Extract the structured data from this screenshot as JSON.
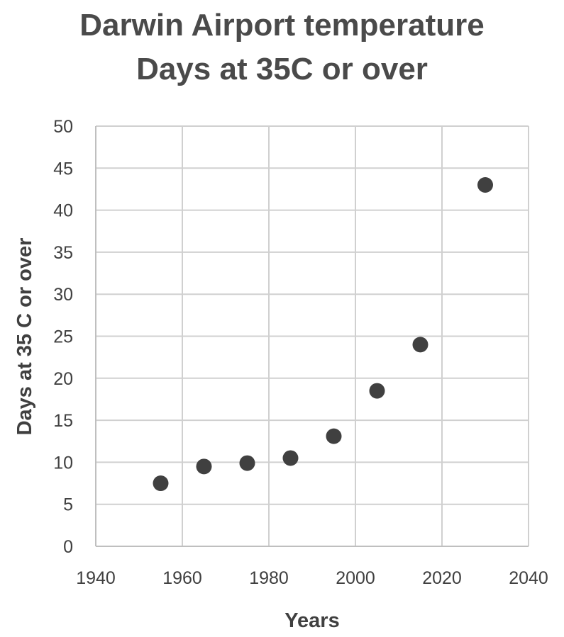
{
  "chart_data": {
    "type": "scatter",
    "title": "Darwin Airport temperature",
    "subtitle": "Days at 35C or over",
    "xlabel": "Years",
    "ylabel": "Days at 35 C or over",
    "xlim": [
      1940,
      2040
    ],
    "ylim": [
      0,
      50
    ],
    "x_ticks": [
      "1940",
      "1960",
      "1980",
      "2000",
      "2020",
      "2040"
    ],
    "y_ticks": [
      "0",
      "5",
      "10",
      "15",
      "20",
      "25",
      "30",
      "35",
      "40",
      "45",
      "50"
    ],
    "grid": true,
    "legend": "none",
    "marker_color": "#404040",
    "points": [
      {
        "x": 1955,
        "y": 7.5
      },
      {
        "x": 1965,
        "y": 9.5
      },
      {
        "x": 1975,
        "y": 9.9
      },
      {
        "x": 1985,
        "y": 10.5
      },
      {
        "x": 1995,
        "y": 13.1
      },
      {
        "x": 2005,
        "y": 18.5
      },
      {
        "x": 2015,
        "y": 24.0
      },
      {
        "x": 2030,
        "y": 43.0
      }
    ]
  }
}
